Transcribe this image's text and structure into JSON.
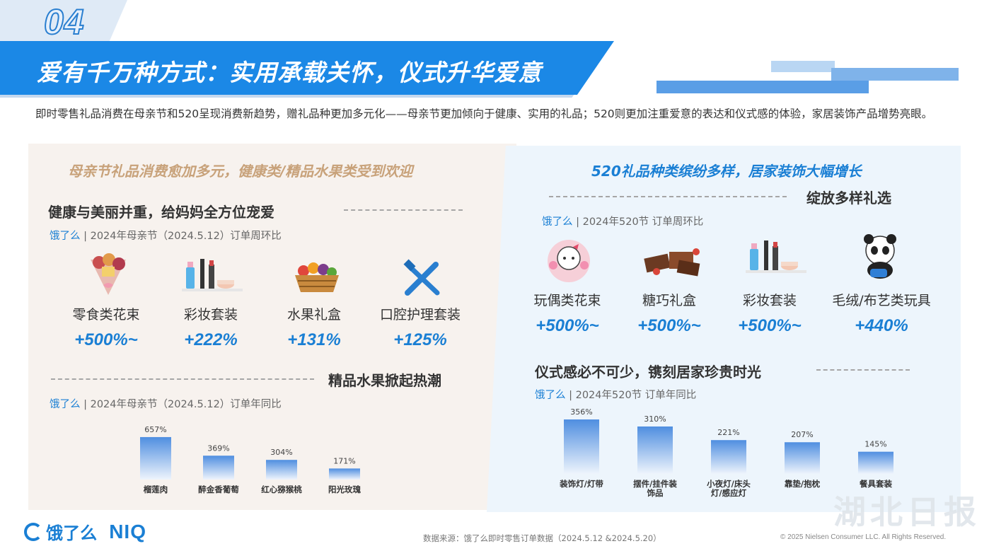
{
  "section_number": "04",
  "title": "爱有千万种方式：实用承载关怀，仪式升华爱意",
  "intro": "即时零售礼品消费在母亲节和520呈现消费新趋势，赠礼品种更加多元化——母亲节更加倾向于健康、实用的礼品；520则更加注重爱意的表达和仪式感的体验，家居装饰产品增势亮眼。",
  "colors": {
    "primary_blue": "#1b88e6",
    "accent_orange": "#c8a27a",
    "value_blue": "#1a7fd4",
    "bar_top": "#4f8ee0",
    "bar_bottom": "#eef4fc"
  },
  "left_panel": {
    "header": "母亲节礼品消费愈加多元，健康类/精品水果类受到欢迎",
    "section1": {
      "title": "健康与美丽并重，给妈妈全方位宠爱",
      "source_brand": "饿了么",
      "source_text": " | 2024年母亲节（2024.5.12）订单周环比",
      "items": [
        {
          "icon": "snack-bouquet-icon",
          "label": "零食类花束",
          "value": "+500%~"
        },
        {
          "icon": "makeup-set-icon",
          "label": "彩妆套装",
          "value": "+222%"
        },
        {
          "icon": "fruit-basket-icon",
          "label": "水果礼盒",
          "value": "+131%"
        },
        {
          "icon": "toothbrush-icon",
          "label": "口腔护理套装",
          "value": "+125%"
        }
      ]
    },
    "section2": {
      "title": "精品水果掀起热潮",
      "source_brand": "饿了么",
      "source_text": " | 2024年母亲节（2024.5.12）订单年同比"
    }
  },
  "right_panel": {
    "header": "520礼品种类缤纷多样，居家装饰大幅增长",
    "section1": {
      "title": "绽放多样礼选",
      "source_brand": "饿了么",
      "source_text": " | 2024年520节 订单周环比",
      "items": [
        {
          "icon": "plush-bouquet-icon",
          "label": "玩偶类花束",
          "value": "+500%~"
        },
        {
          "icon": "chocolate-box-icon",
          "label": "糖巧礼盒",
          "value": "+500%~"
        },
        {
          "icon": "makeup-set-icon",
          "label": "彩妆套装",
          "value": "+500%~"
        },
        {
          "icon": "panda-toy-icon",
          "label": "毛绒/布艺类玩具",
          "value": "+440%"
        }
      ]
    },
    "section2": {
      "title": "仪式感必不可少，镌刻居家珍贵时光",
      "source_brand": "饿了么",
      "source_text": " | 2024年520节 订单年同比"
    }
  },
  "chart_data": [
    {
      "type": "bar",
      "categories": [
        "榴莲肉",
        "醉金香葡萄",
        "红心猕猴桃",
        "阳光玫瑰"
      ],
      "values": [
        657,
        369,
        304,
        171
      ],
      "value_labels": [
        "657%",
        "369%",
        "304%",
        "171%"
      ],
      "unit": "%",
      "ylim": [
        0,
        700
      ],
      "grid": false
    },
    {
      "type": "bar",
      "categories": [
        "装饰灯/灯带",
        "摆件/挂件装饰品",
        "小夜灯/床头灯/感应灯",
        "靠垫/抱枕",
        "餐具套装"
      ],
      "values": [
        356,
        310,
        221,
        207,
        145
      ],
      "value_labels": [
        "356%",
        "310%",
        "221%",
        "207%",
        "145%"
      ],
      "unit": "%",
      "ylim": [
        0,
        370
      ],
      "grid": false
    }
  ],
  "footer": {
    "logo_text": "饿了么",
    "logo_text2": "NIQ",
    "source": "数据来源：饿了么即时零售订单数据（2024.5.12 &2024.5.20）",
    "copyright": "© 2025 Nielsen Consumer LLC. All Rights Reserved.",
    "watermark": "湖北日报"
  }
}
